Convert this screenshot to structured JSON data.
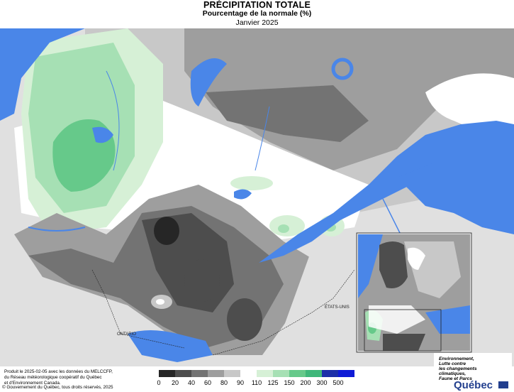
{
  "header": {
    "title": "PRÉCIPITATION TOTALE",
    "subtitle": "Pourcentage de la normale (%)",
    "period": "Janvier 2025"
  },
  "map": {
    "labels": {
      "ontario": "ONTARIO",
      "usa": "ÉTATS-UNIS"
    },
    "colors": {
      "water": "#4a86e8",
      "land_outside": "#e0e0e0"
    }
  },
  "legend": {
    "classes": [
      {
        "lower": "0",
        "color": "#262626"
      },
      {
        "lower": "20",
        "color": "#4d4d4d"
      },
      {
        "lower": "40",
        "color": "#737373"
      },
      {
        "lower": "60",
        "color": "#9e9e9e"
      },
      {
        "lower": "80",
        "color": "#c8c8c8"
      },
      {
        "lower": "90",
        "color": "#ffffff"
      },
      {
        "lower": "110",
        "color": "#d6f0d6"
      },
      {
        "lower": "125",
        "color": "#a6e0b4"
      },
      {
        "lower": "150",
        "color": "#66c98a"
      },
      {
        "lower": "200",
        "color": "#3fb77a"
      },
      {
        "lower": "300",
        "color": "#1c2fa8"
      },
      {
        "lower": "500",
        "color": "#0f1bd6"
      }
    ],
    "ticks": [
      "0",
      "20",
      "40",
      "60",
      "80",
      "90",
      "110",
      "125",
      "150",
      "200",
      "300",
      "500"
    ]
  },
  "footer": {
    "line1": "Produit le 2025-02-05 avec les données du MELCCFP,",
    "line2": "du Réseau météorologique coopératif du Québec",
    "line3": "et d'Environnement Canada.",
    "copyright": "© Gouvernement du Québec, tous droits réservés, 2025"
  },
  "brand": {
    "line1": "Environnement,",
    "line2": "Lutte contre",
    "line3": "les changements",
    "line4": "climatiques,",
    "line5": "Faune et Parcs",
    "name": "Québec"
  }
}
